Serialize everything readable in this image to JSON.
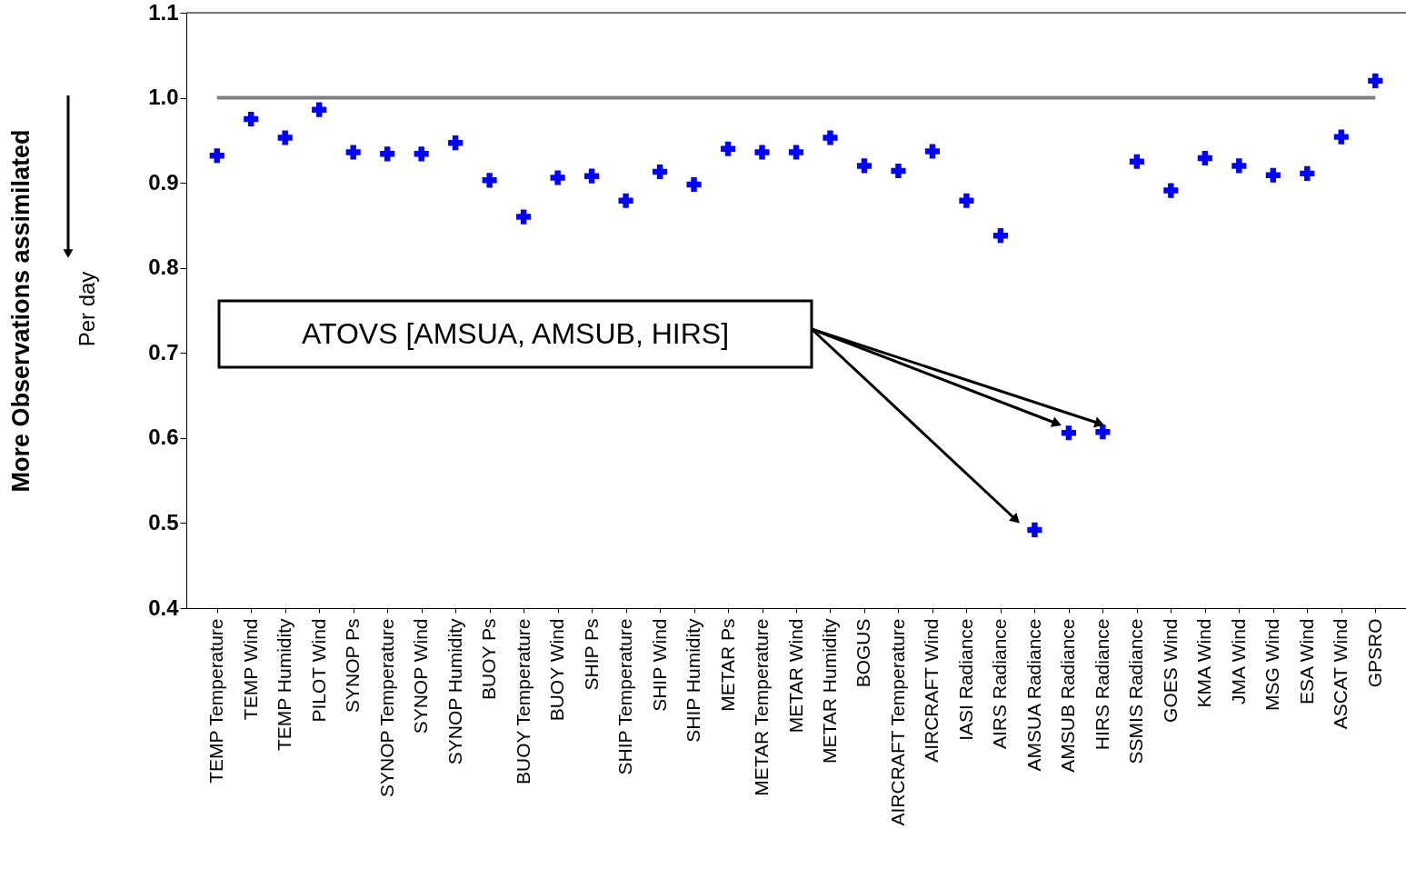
{
  "chart_data": {
    "type": "scatter",
    "ylabel": "More Observations assimilated",
    "annotations": [
      "Per day",
      "ATOVS [AMSUA, AMSUB, HIRS]"
    ],
    "categories": [
      "TEMP Temperature",
      "TEMP Wind",
      "TEMP Humidity",
      "PILOT Wind",
      "SYNOP Ps",
      "SYNOP Temperature",
      "SYNOP Wind",
      "SYNOP Humidity",
      "BUOY Ps",
      "BUOY Temperature",
      "BUOY Wind",
      "SHIP Ps",
      "SHIP Temperature",
      "SHIP Wind",
      "SHIP Humidity",
      "METAR Ps",
      "METAR Temperature",
      "METAR Wind",
      "METAR Humidity",
      "BOGUS",
      "AIRCRAFT Temperature",
      "AIRCRAFT Wind",
      "IASI Radiance",
      "AIRS Radiance",
      "AMSUA Radiance",
      "AMSUB Radiance",
      "HIRS Radiance",
      "SSMIS Radiance",
      "GOES Wind",
      "KMA Wind",
      "JMA Wind",
      "MSG Wind",
      "ESA Wind",
      "ASCAT Wind",
      "GPSRO"
    ],
    "series": [
      {
        "color": "#0000ff",
        "values": [
          0.932,
          0.975,
          0.953,
          0.986,
          0.936,
          0.934,
          0.934,
          0.947,
          0.903,
          0.86,
          0.906,
          0.908,
          0.879,
          0.913,
          0.898,
          0.94,
          0.936,
          0.936,
          0.953,
          0.92,
          0.914,
          0.937,
          0.879,
          0.838,
          0.492,
          0.606,
          0.607,
          0.925,
          0.891,
          0.929,
          0.92,
          0.909,
          0.911,
          0.954,
          1.02
        ]
      }
    ],
    "marker": "cross",
    "grid": false,
    "ylim": [
      0.4,
      1.1
    ],
    "yticks": [
      0.4,
      0.5,
      0.6,
      0.7,
      0.8,
      0.9,
      {
        "value": 1.0,
        "label": "1.0"
      },
      1.1
    ],
    "ref_lines": [
      {
        "axis": "y",
        "value": 1.0,
        "color": "#808080"
      }
    ]
  }
}
